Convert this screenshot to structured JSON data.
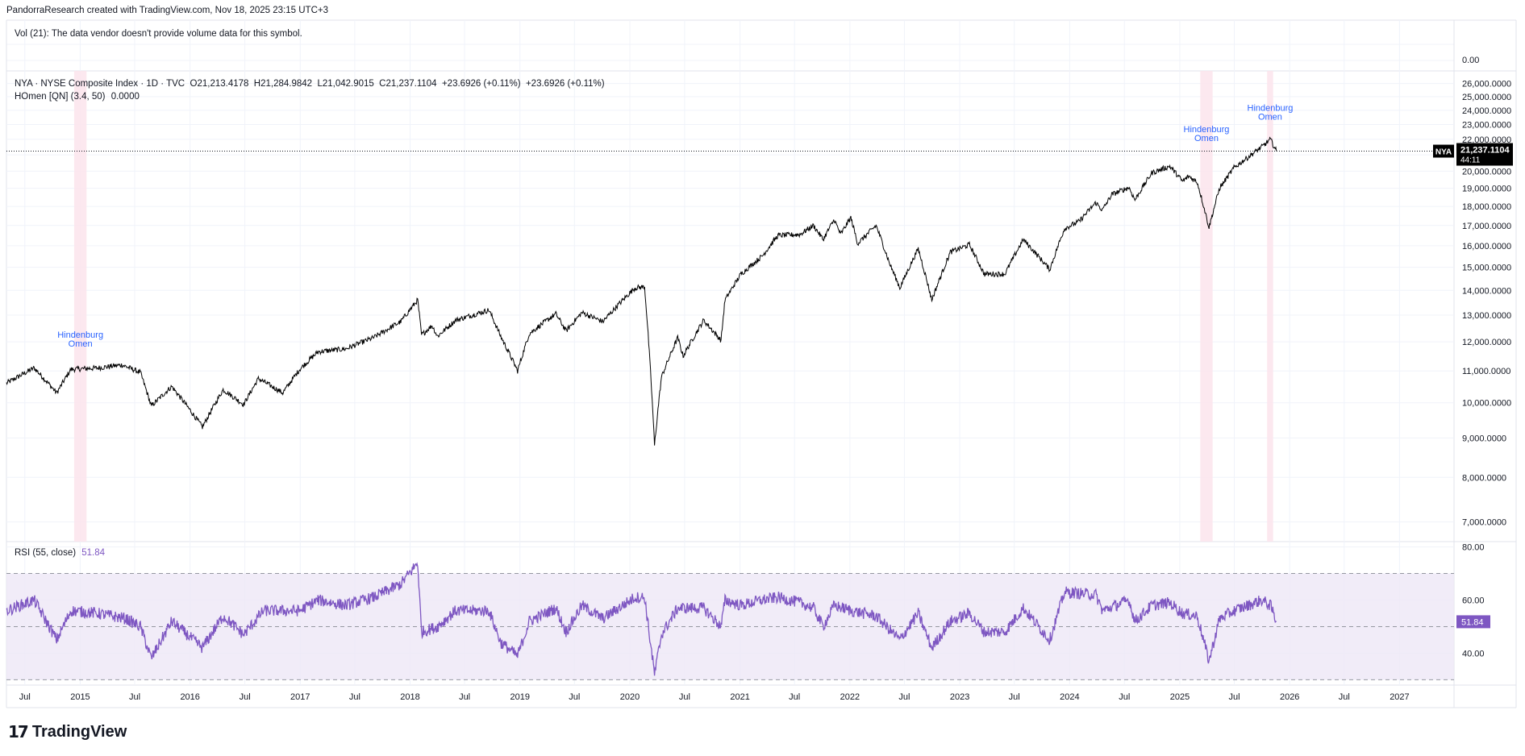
{
  "header": {
    "attribution": "PandorraResearch created with TradingView.com, Nov 18, 2025 23:15 UTC+3"
  },
  "volume_pane": {
    "message": "Vol (21): The data vendor doesn't provide volume data for this symbol.",
    "axis_label": "0.00"
  },
  "price_pane": {
    "legend_line1": "NYA · NYSE Composite Index · 1D · TVC  O21,213.4178  H21,284.9842  L21,042.9015  C21,237.1104  +23.6926 (+0.11%)  +23.6926 (+0.11%)",
    "legend_line2_name": "HOmen [QN] (3.4, 50)",
    "legend_line2_value": "0.0000",
    "price_tag_symbol": "NYA",
    "price_tag_value": "21,237.1104",
    "price_tag_countdown": "44:11"
  },
  "rsi_pane": {
    "legend_name": "RSI (55, close)",
    "legend_value": "51.84",
    "current_tag": "51.84"
  },
  "colors": {
    "price_line": "#000000",
    "rsi_line": "#7e57c2",
    "rsi_band": "#ede7f6",
    "omen_band": "#fce4ec",
    "omen_text": "#2962ff",
    "grid": "#f0f3fa"
  },
  "logo": {
    "text": "TradingView",
    "mark": "17"
  },
  "chart_data": [
    {
      "type": "line",
      "title": "NYA · NYSE Composite Index · 1D · TVC",
      "y_scale": "log",
      "ylim": [
        6600,
        27000
      ],
      "y_ticks": [
        7000,
        8000,
        9000,
        10000,
        11000,
        12000,
        13000,
        14000,
        15000,
        16000,
        17000,
        18000,
        19000,
        20000,
        21000,
        22000,
        23000,
        24000,
        25000,
        26000
      ],
      "y_tick_labels": [
        "7,000.0000",
        "8,000.0000",
        "9,000.0000",
        "10,000.0000",
        "11,000.0000",
        "12,000.0000",
        "13,000.0000",
        "14,000.0000",
        "15,000.0000",
        "16,000.0000",
        "17,000.0000",
        "18,000.0000",
        "19,000.0000",
        "20,000.0000",
        "21,000.0000",
        "22,000.0000",
        "23,000.0000",
        "24,000.0000",
        "25,000.0000",
        "26,000.0000"
      ],
      "x_range": [
        "2014-05-01",
        "2027-07-01"
      ],
      "x_ticks": [
        {
          "date": "2014-07-01",
          "label": "Jul"
        },
        {
          "date": "2015-01-01",
          "label": "2015"
        },
        {
          "date": "2015-07-01",
          "label": "Jul"
        },
        {
          "date": "2016-01-01",
          "label": "2016"
        },
        {
          "date": "2016-07-01",
          "label": "Jul"
        },
        {
          "date": "2017-01-01",
          "label": "2017"
        },
        {
          "date": "2017-07-01",
          "label": "Jul"
        },
        {
          "date": "2018-01-01",
          "label": "2018"
        },
        {
          "date": "2018-07-01",
          "label": "Jul"
        },
        {
          "date": "2019-01-01",
          "label": "2019"
        },
        {
          "date": "2019-07-01",
          "label": "Jul"
        },
        {
          "date": "2020-01-01",
          "label": "2020"
        },
        {
          "date": "2020-07-01",
          "label": "Jul"
        },
        {
          "date": "2021-01-01",
          "label": "2021"
        },
        {
          "date": "2021-07-01",
          "label": "Jul"
        },
        {
          "date": "2022-01-01",
          "label": "2022"
        },
        {
          "date": "2022-07-01",
          "label": "Jul"
        },
        {
          "date": "2023-01-01",
          "label": "2023"
        },
        {
          "date": "2023-07-01",
          "label": "Jul"
        },
        {
          "date": "2024-01-01",
          "label": "2024"
        },
        {
          "date": "2024-07-01",
          "label": "Jul"
        },
        {
          "date": "2025-01-01",
          "label": "2025"
        },
        {
          "date": "2025-07-01",
          "label": "Jul"
        },
        {
          "date": "2026-01-01",
          "label": "2026"
        },
        {
          "date": "2026-07-01",
          "label": "Jul"
        },
        {
          "date": "2027-01-01",
          "label": "2027"
        }
      ],
      "last_price": 21237.1104,
      "series": [
        {
          "x": [
            "2014-05-01",
            "2014-08-01",
            "2014-10-15",
            "2014-12-01",
            "2015-03-01",
            "2015-05-20",
            "2015-07-20",
            "2015-08-25",
            "2015-11-01",
            "2016-02-11",
            "2016-04-20",
            "2016-06-27",
            "2016-08-15",
            "2016-11-04",
            "2016-12-30",
            "2017-03-01",
            "2017-06-01",
            "2017-09-01",
            "2017-12-01",
            "2018-01-26",
            "2018-02-08",
            "2018-03-15",
            "2018-04-02",
            "2018-06-01",
            "2018-09-20",
            "2018-10-29",
            "2018-12-24",
            "2019-02-01",
            "2019-04-30",
            "2019-06-03",
            "2019-07-26",
            "2019-10-03",
            "2020-01-17",
            "2020-02-19",
            "2020-03-23",
            "2020-04-15",
            "2020-06-08",
            "2020-06-26",
            "2020-09-02",
            "2020-10-30",
            "2020-11-12",
            "2021-01-04",
            "2021-03-15",
            "2021-05-07",
            "2021-07-19",
            "2021-09-02",
            "2021-10-04",
            "2021-11-10",
            "2021-12-01",
            "2022-01-04",
            "2022-01-27",
            "2022-03-29",
            "2022-05-12",
            "2022-06-16",
            "2022-08-16",
            "2022-09-30",
            "2022-12-01",
            "2023-02-02",
            "2023-03-23",
            "2023-05-31",
            "2023-07-31",
            "2023-10-27",
            "2023-12-15",
            "2024-02-01",
            "2024-03-28",
            "2024-04-19",
            "2024-05-20",
            "2024-07-16",
            "2024-08-05",
            "2024-09-30",
            "2024-11-29",
            "2025-01-10",
            "2025-01-31",
            "2025-02-28",
            "2025-04-08",
            "2025-05-13",
            "2025-06-30",
            "2025-08-15",
            "2025-09-30",
            "2025-10-29",
            "2025-11-18"
          ],
          "y": [
            10600,
            11100,
            10300,
            11050,
            11100,
            11200,
            10950,
            9900,
            10500,
            9300,
            10400,
            9950,
            10750,
            10300,
            11050,
            11650,
            11750,
            12150,
            12750,
            13600,
            12250,
            12600,
            12200,
            12800,
            13200,
            12200,
            11000,
            12300,
            13050,
            12400,
            13100,
            12750,
            14100,
            14150,
            8800,
            10800,
            12150,
            11500,
            12800,
            12050,
            13600,
            14700,
            15500,
            16500,
            16550,
            17000,
            16300,
            17300,
            16550,
            17400,
            16100,
            17000,
            15200,
            14100,
            15850,
            13600,
            15700,
            16050,
            14700,
            14700,
            16300,
            14900,
            16850,
            17200,
            18200,
            17800,
            18650,
            19050,
            18350,
            19900,
            20300,
            19400,
            19700,
            19350,
            16900,
            19000,
            20200,
            20850,
            21500,
            22000,
            21237
          ]
        }
      ],
      "annotations": [
        {
          "label": "Hindenburg\nOmen",
          "band_x": [
            "2014-12-12",
            "2015-01-22"
          ],
          "at_y": 11300
        },
        {
          "label": "Hindenburg\nOmen",
          "band_x": [
            "2025-03-10",
            "2025-04-20"
          ],
          "at_y": 20900
        },
        {
          "label": "Hindenburg\nOmen",
          "band_x": [
            "2025-10-18",
            "2025-11-07"
          ],
          "at_y": 22300
        }
      ]
    },
    {
      "type": "line",
      "title": "RSI (55, close)",
      "ylim": [
        28,
        82
      ],
      "y_ticks": [
        40,
        60,
        80
      ],
      "y_tick_labels": [
        "40.00",
        "60.00",
        "80.00"
      ],
      "band": [
        30,
        70
      ],
      "midline": 50,
      "last_value": 51.84,
      "series": [
        {
          "x": [
            "2014-05-01",
            "2014-08-01",
            "2014-10-15",
            "2014-12-01",
            "2015-03-01",
            "2015-06-01",
            "2015-07-20",
            "2015-08-25",
            "2015-11-01",
            "2016-02-11",
            "2016-04-20",
            "2016-06-27",
            "2016-09-01",
            "2016-12-30",
            "2017-03-01",
            "2017-06-01",
            "2017-09-01",
            "2017-12-01",
            "2018-01-26",
            "2018-02-08",
            "2018-04-02",
            "2018-06-01",
            "2018-09-20",
            "2018-10-29",
            "2018-12-24",
            "2019-02-01",
            "2019-04-30",
            "2019-06-03",
            "2019-07-26",
            "2019-10-03",
            "2020-01-17",
            "2020-02-19",
            "2020-03-23",
            "2020-04-15",
            "2020-06-08",
            "2020-09-02",
            "2020-10-30",
            "2020-11-12",
            "2021-01-04",
            "2021-03-15",
            "2021-05-07",
            "2021-07-19",
            "2021-09-02",
            "2021-10-04",
            "2021-11-10",
            "2022-01-04",
            "2022-03-29",
            "2022-06-16",
            "2022-08-16",
            "2022-09-30",
            "2022-12-01",
            "2023-02-02",
            "2023-03-23",
            "2023-05-31",
            "2023-07-31",
            "2023-10-27",
            "2023-12-15",
            "2024-03-28",
            "2024-04-19",
            "2024-07-16",
            "2024-08-05",
            "2024-09-30",
            "2024-11-29",
            "2025-01-10",
            "2025-02-28",
            "2025-04-08",
            "2025-05-13",
            "2025-07-01",
            "2025-09-30",
            "2025-10-29",
            "2025-11-18"
          ],
          "y": [
            56,
            60,
            45,
            56,
            55,
            53,
            50,
            38,
            52,
            42,
            54,
            47,
            56,
            56,
            60,
            58,
            61,
            66,
            74,
            48,
            50,
            56,
            56,
            44,
            39,
            52,
            57,
            48,
            58,
            53,
            61,
            61,
            32,
            47,
            57,
            57,
            50,
            60,
            58,
            60,
            61,
            59,
            57,
            50,
            58,
            56,
            54,
            45,
            55,
            42,
            52,
            55,
            48,
            48,
            57,
            45,
            63,
            62,
            56,
            60,
            52,
            58,
            59,
            55,
            54,
            37,
            53,
            56,
            60,
            58,
            51.84
          ]
        }
      ]
    }
  ]
}
